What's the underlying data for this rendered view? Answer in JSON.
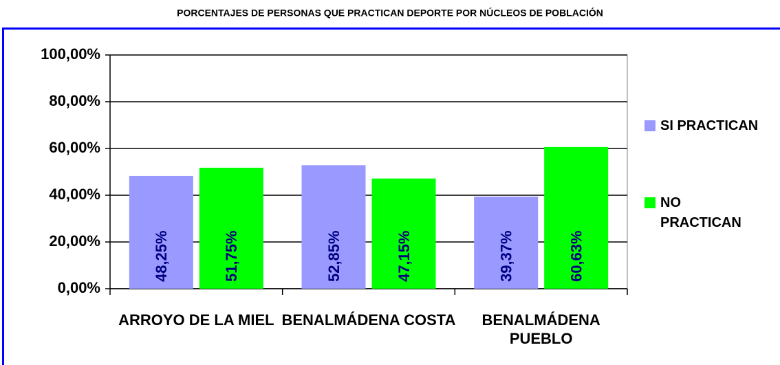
{
  "chart_data": {
    "type": "bar",
    "title": "PORCENTAJES DE PERSONAS QUE PRACTICAN DEPORTE POR NÚCLEOS DE POBLACIÓN",
    "categories": [
      "ARROYO DE LA MIEL",
      "BENALMÁDENA COSTA",
      "BENALMÁDENA PUEBLO"
    ],
    "series": [
      {
        "name": "SI PRACTICAN",
        "color": "#9999ff",
        "values": [
          48.25,
          52.85,
          39.37
        ],
        "value_labels": [
          "48,25%",
          "52,85%",
          "39,37%"
        ]
      },
      {
        "name": "NO PRACTICAN",
        "color": "#00ff00",
        "values": [
          51.75,
          47.15,
          60.63
        ],
        "value_labels": [
          "51,75%",
          "47,15%",
          "60,63%"
        ]
      }
    ],
    "ylim": [
      0,
      100
    ],
    "yticks": [
      {
        "value": 0,
        "label": "0,00%"
      },
      {
        "value": 20,
        "label": "20,00%"
      },
      {
        "value": 40,
        "label": "40,00%"
      },
      {
        "value": 60,
        "label": "60,00%"
      },
      {
        "value": 80,
        "label": "80,00%"
      },
      {
        "value": 100,
        "label": "100,00%"
      }
    ],
    "grid": true,
    "legend": "right"
  }
}
